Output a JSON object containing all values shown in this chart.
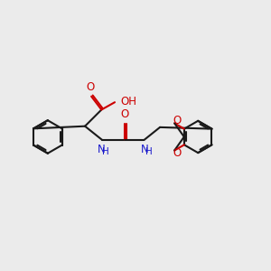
{
  "bg_color": "#ebebeb",
  "bond_color": "#1a1a1a",
  "oxygen_color": "#cc0000",
  "nitrogen_color": "#1a1acc",
  "line_width": 1.5,
  "font_size": 8.5,
  "fig_size": [
    3.0,
    3.0
  ],
  "dpi": 100,
  "xlim": [
    0,
    10
  ],
  "ylim": [
    2.5,
    7.5
  ]
}
